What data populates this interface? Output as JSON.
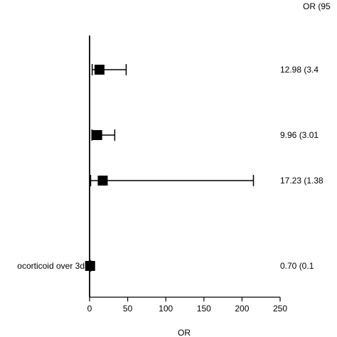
{
  "chart_data": {
    "type": "forest",
    "column_header": "OR (95",
    "xlabel": "OR",
    "xlim": [
      0,
      250
    ],
    "x_ticks": [
      "0",
      "50",
      "100",
      "150",
      "200",
      "250"
    ],
    "rows": [
      {
        "label": "",
        "or": 12.98,
        "ci_low": 3.4,
        "ci_high": 48,
        "text": "12.98 (3.4"
      },
      {
        "label": "",
        "or": 9.96,
        "ci_low": 3.01,
        "ci_high": 33,
        "text": "9.96 (3.01"
      },
      {
        "label": "",
        "or": 17.23,
        "ci_low": 1.38,
        "ci_high": 215,
        "text": "17.23 (1.38"
      },
      {
        "label": "ocorticoid over 3d",
        "or": 0.7,
        "ci_low": 0.1,
        "ci_high": 1.5,
        "text": "0.70 (0.1"
      }
    ],
    "colors": {
      "marker": "#000000",
      "axis": "#000000"
    }
  }
}
